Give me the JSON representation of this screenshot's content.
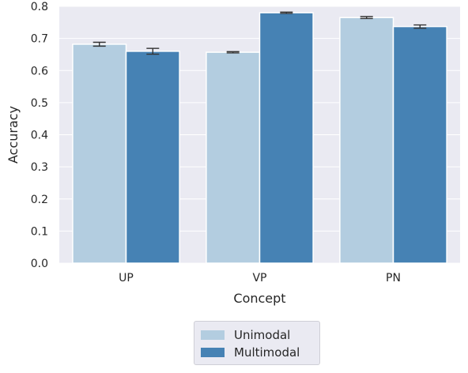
{
  "chart_data": {
    "type": "bar",
    "xlabel": "Concept",
    "ylabel": "Accuracy",
    "categories": [
      "UP",
      "VP",
      "PN"
    ],
    "ylim": [
      0,
      0.8
    ],
    "yticks": [
      "0.0",
      "0.1",
      "0.2",
      "0.3",
      "0.4",
      "0.5",
      "0.6",
      "0.7",
      "0.8"
    ],
    "grid": true,
    "legend_position": "bottom-center",
    "series": [
      {
        "name": "Unimodal",
        "color": "#b3cde0",
        "values": [
          0.682,
          0.657,
          0.765
        ],
        "errors": [
          0.006,
          0.002,
          0.003
        ]
      },
      {
        "name": "Multimodal",
        "color": "#4682b4",
        "values": [
          0.66,
          0.78,
          0.737
        ],
        "errors": [
          0.009,
          0.002,
          0.005
        ]
      }
    ]
  },
  "colors": {
    "plot_background": "#eaeaf2",
    "gridline": "#ffffff",
    "errorbar": "#333333"
  }
}
